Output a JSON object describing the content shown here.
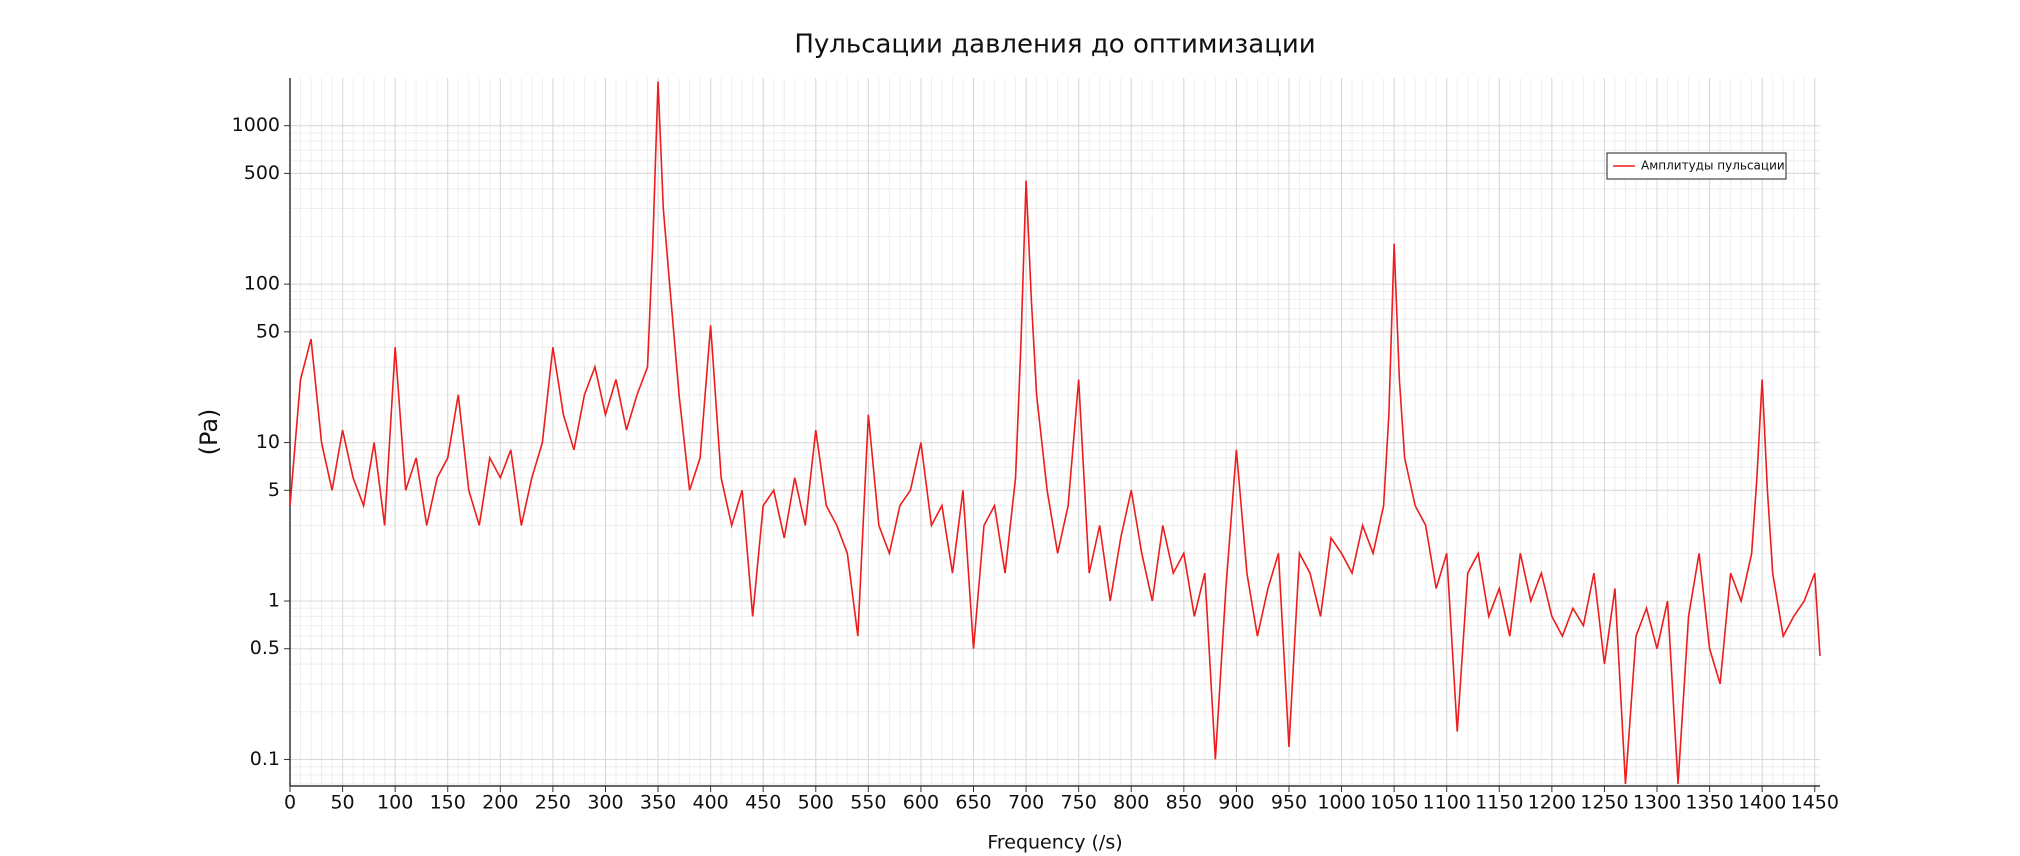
{
  "chart_data": {
    "type": "line",
    "title": "Пульсации давления до оптимизации",
    "x_label": "Frequency (/s)",
    "y_label": "(Pa)",
    "x": [
      0,
      10,
      20,
      30,
      40,
      50,
      60,
      70,
      80,
      90,
      100,
      110,
      120,
      130,
      140,
      150,
      160,
      170,
      180,
      190,
      200,
      210,
      220,
      230,
      240,
      250,
      260,
      270,
      280,
      290,
      300,
      310,
      320,
      330,
      340,
      345,
      350,
      355,
      360,
      370,
      380,
      390,
      400,
      410,
      420,
      430,
      440,
      450,
      460,
      470,
      480,
      490,
      500,
      510,
      520,
      530,
      540,
      550,
      560,
      570,
      580,
      590,
      600,
      610,
      620,
      630,
      640,
      650,
      660,
      670,
      680,
      690,
      695,
      700,
      705,
      710,
      720,
      730,
      740,
      750,
      760,
      770,
      780,
      790,
      800,
      810,
      820,
      830,
      840,
      850,
      860,
      870,
      880,
      890,
      900,
      910,
      920,
      930,
      940,
      950,
      960,
      970,
      980,
      990,
      1000,
      1010,
      1020,
      1030,
      1040,
      1045,
      1050,
      1055,
      1060,
      1070,
      1080,
      1090,
      1100,
      1110,
      1120,
      1130,
      1140,
      1150,
      1160,
      1170,
      1180,
      1190,
      1200,
      1210,
      1220,
      1230,
      1240,
      1250,
      1260,
      1270,
      1280,
      1290,
      1300,
      1310,
      1320,
      1330,
      1340,
      1350,
      1360,
      1370,
      1380,
      1390,
      1395,
      1400,
      1405,
      1410,
      1420,
      1430,
      1440,
      1450,
      1455
    ],
    "series": [
      {
        "name": "Амплитуды пульсации",
        "color": "#ee1c1c",
        "values": [
          4,
          25,
          45,
          10,
          5,
          12,
          6,
          4,
          10,
          3,
          40,
          5,
          8,
          3,
          6,
          8,
          20,
          5,
          3,
          8,
          6,
          9,
          3,
          6,
          10,
          40,
          15,
          9,
          20,
          30,
          15,
          25,
          12,
          20,
          30,
          180,
          1900,
          300,
          120,
          20,
          5,
          8,
          55,
          6,
          3,
          5,
          0.8,
          4,
          5,
          2.5,
          6,
          3,
          12,
          4,
          3,
          2,
          0.6,
          15,
          3,
          2,
          4,
          5,
          10,
          3,
          4,
          1.5,
          5,
          0.5,
          3,
          4,
          1.5,
          6,
          40,
          450,
          80,
          20,
          5,
          2,
          4,
          25,
          1.5,
          3,
          1,
          2.5,
          5,
          2,
          1,
          3,
          1.5,
          2,
          0.8,
          1.5,
          0.1,
          1.2,
          9,
          1.5,
          0.6,
          1.2,
          2,
          0.12,
          2,
          1.5,
          0.8,
          2.5,
          2,
          1.5,
          3,
          2,
          4,
          15,
          180,
          25,
          8,
          4,
          3,
          1.2,
          2,
          0.15,
          1.5,
          2,
          0.8,
          1.2,
          0.6,
          2,
          1,
          1.5,
          0.8,
          0.6,
          0.9,
          0.7,
          1.5,
          0.4,
          1.2,
          0.07,
          0.6,
          0.9,
          0.5,
          1,
          0.07,
          0.8,
          2,
          0.5,
          0.3,
          1.5,
          1,
          2,
          6,
          25,
          5,
          1.5,
          0.6,
          0.8,
          1,
          1.5,
          0.45
        ]
      }
    ],
    "xlim": [
      0,
      1455
    ],
    "xticks": [
      0,
      50,
      100,
      150,
      200,
      250,
      300,
      350,
      400,
      450,
      500,
      550,
      600,
      650,
      700,
      750,
      800,
      850,
      900,
      950,
      1000,
      1050,
      1100,
      1150,
      1200,
      1250,
      1300,
      1350,
      1400,
      1450
    ],
    "ylim": [
      0.068,
      2000
    ],
    "yticks": [
      0.1,
      0.5,
      1,
      5,
      10,
      50,
      100,
      500,
      1000
    ],
    "y_scale": "log",
    "grid": true,
    "minor_grid": true,
    "legend": "upper right"
  }
}
